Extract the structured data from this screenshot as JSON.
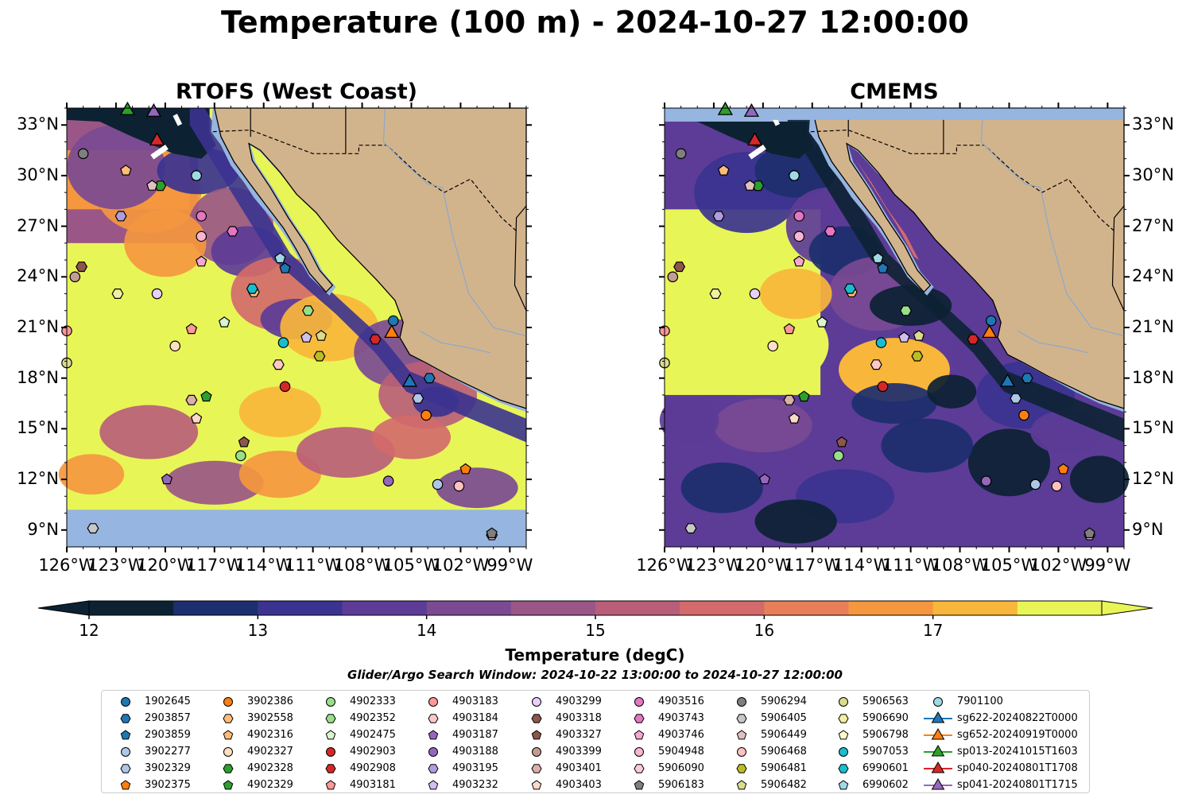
{
  "suptitle": "Temperature (100 m) - 2024-10-27 12:00:00",
  "panels": [
    {
      "title": "RTOFS (West Coast)",
      "style": "rtofs"
    },
    {
      "title": "CMEMS",
      "style": "cmems"
    }
  ],
  "axes": {
    "lon_ticks": [
      "126°W",
      "123°W",
      "120°W",
      "117°W",
      "114°W",
      "111°W",
      "108°W",
      "105°W",
      "102°W",
      "99°W"
    ],
    "lat_ticks": [
      "33°N",
      "30°N",
      "27°N",
      "24°N",
      "21°N",
      "18°N",
      "15°N",
      "12°N",
      "9°N"
    ]
  },
  "colorbar": {
    "label": "Temperature (degC)",
    "ticks": [
      "12",
      "13",
      "14",
      "15",
      "16",
      "17"
    ],
    "colors": [
      "#0c2233",
      "#1c2f6e",
      "#3b3390",
      "#5c3c97",
      "#7a4a93",
      "#9a5686",
      "#b95e78",
      "#d36a6b",
      "#e87f59",
      "#f4973f",
      "#f8b63b",
      "#e8f556"
    ]
  },
  "search_window": "Glider/Argo Search Window: 2024-10-22 13:00:00 to 2024-10-27 12:00:00",
  "colors": {
    "ocean_fill": "#96b5e0",
    "land": "#d2b48c",
    "cool_ocean": "#0c2233",
    "warm_ocean": "#e8f556"
  },
  "chart_data": {
    "type": "map",
    "lon_range": [
      -126,
      -98
    ],
    "lat_range": [
      8,
      34
    ],
    "markers": [
      {
        "id": "1902645",
        "shape": "circle",
        "color": "#1f77b4",
        "lon": -106.1,
        "lat": 21.4
      },
      {
        "id": "2903857",
        "shape": "hexagon",
        "color": "#1f77b4",
        "lon": -103.9,
        "lat": 18.0
      },
      {
        "id": "2903859",
        "shape": "pentagon",
        "color": "#1f77b4",
        "lon": -112.7,
        "lat": 24.5
      },
      {
        "id": "3902277",
        "shape": "circle",
        "color": "#aec7e8",
        "lon": -103.4,
        "lat": 11.7
      },
      {
        "id": "3902329",
        "shape": "hexagon",
        "color": "#aec7e8",
        "lon": -104.6,
        "lat": 16.8
      },
      {
        "id": "3902375",
        "shape": "pentagon",
        "color": "#ff7f0e",
        "lon": -101.7,
        "lat": 12.6
      },
      {
        "id": "3902386",
        "shape": "circle",
        "color": "#ff7f0e",
        "lon": -104.1,
        "lat": 15.8
      },
      {
        "id": "3902558",
        "shape": "hexagon",
        "color": "#ffbb78",
        "lon": -114.6,
        "lat": 23.1
      },
      {
        "id": "4902316",
        "shape": "pentagon",
        "color": "#ffbb78",
        "lon": -122.4,
        "lat": 30.3
      },
      {
        "id": "4902327",
        "shape": "circle",
        "color": "#ffe0c0",
        "lon": -119.4,
        "lat": 19.9
      },
      {
        "id": "4902328",
        "shape": "hexagon",
        "color": "#2ca02c",
        "lon": -120.3,
        "lat": 29.4
      },
      {
        "id": "4902329",
        "shape": "pentagon",
        "color": "#2ca02c",
        "lon": -117.5,
        "lat": 16.9
      },
      {
        "id": "4902333",
        "shape": "circle",
        "color": "#98df8a",
        "lon": -115.4,
        "lat": 13.4
      },
      {
        "id": "4902352",
        "shape": "hexagon",
        "color": "#98df8a",
        "lon": -111.3,
        "lat": 22.0
      },
      {
        "id": "4902475",
        "shape": "pentagon",
        "color": "#d8f5d0",
        "lon": -116.4,
        "lat": 21.3
      },
      {
        "id": "4902903",
        "shape": "circle",
        "color": "#d62728",
        "lon": -112.7,
        "lat": 17.5
      },
      {
        "id": "4902908",
        "shape": "hexagon",
        "color": "#d62728",
        "lon": -107.2,
        "lat": 20.3
      },
      {
        "id": "4903181",
        "shape": "pentagon",
        "color": "#ff9896",
        "lon": -118.4,
        "lat": 20.9
      },
      {
        "id": "4903183",
        "shape": "circle",
        "color": "#ff9896",
        "lon": -126.0,
        "lat": 20.8
      },
      {
        "id": "4903184",
        "shape": "hexagon",
        "color": "#ffc8c8",
        "lon": -113.1,
        "lat": 18.8
      },
      {
        "id": "4903187",
        "shape": "pentagon",
        "color": "#9467bd",
        "lon": -119.9,
        "lat": 12.0
      },
      {
        "id": "4903188",
        "shape": "circle",
        "color": "#9467bd",
        "lon": -106.4,
        "lat": 11.9
      },
      {
        "id": "4903195",
        "shape": "hexagon",
        "color": "#b09ce0",
        "lon": -122.7,
        "lat": 27.6
      },
      {
        "id": "4903232",
        "shape": "pentagon",
        "color": "#d0c0f0",
        "lon": -111.4,
        "lat": 20.4
      },
      {
        "id": "4903299",
        "shape": "circle",
        "color": "#e8d0f8",
        "lon": -120.5,
        "lat": 23.0
      },
      {
        "id": "4903318",
        "shape": "hexagon",
        "color": "#8c564b",
        "lon": -125.1,
        "lat": 24.6
      },
      {
        "id": "4903327",
        "shape": "pentagon",
        "color": "#8c564b",
        "lon": -115.2,
        "lat": 14.2
      },
      {
        "id": "4903399",
        "shape": "circle",
        "color": "#c49c94",
        "lon": -125.5,
        "lat": 24.0
      },
      {
        "id": "4903401",
        "shape": "hexagon",
        "color": "#dbb0a8",
        "lon": -118.4,
        "lat": 16.7
      },
      {
        "id": "4903403",
        "shape": "pentagon",
        "color": "#ffd8c8",
        "lon": -118.1,
        "lat": 15.6
      },
      {
        "id": "4903516",
        "shape": "circle",
        "color": "#e377c2",
        "lon": -117.8,
        "lat": 27.6
      },
      {
        "id": "4903743",
        "shape": "hexagon",
        "color": "#e377c2",
        "lon": -115.9,
        "lat": 26.7
      },
      {
        "id": "4903746",
        "shape": "pentagon",
        "color": "#f7a6d2",
        "lon": -117.8,
        "lat": 24.9
      },
      {
        "id": "5904948",
        "shape": "circle",
        "color": "#f7b6d2",
        "lon": -117.8,
        "lat": 26.4
      },
      {
        "id": "5906090",
        "shape": "hexagon",
        "color": "#fcc8e0",
        "lon": -100.1,
        "lat": 8.7
      },
      {
        "id": "5906183",
        "shape": "pentagon",
        "color": "#7f7f7f",
        "lon": -100.1,
        "lat": 8.8
      },
      {
        "id": "5906294",
        "shape": "circle",
        "color": "#7f7f7f",
        "lon": -125.0,
        "lat": 31.3
      },
      {
        "id": "5906405",
        "shape": "hexagon",
        "color": "#c7c7c7",
        "lon": -124.4,
        "lat": 9.1
      },
      {
        "id": "5906449",
        "shape": "pentagon",
        "color": "#e0c0c0",
        "lon": -120.8,
        "lat": 29.4
      },
      {
        "id": "5906468",
        "shape": "circle",
        "color": "#ffc0c0",
        "lon": -102.1,
        "lat": 11.6
      },
      {
        "id": "5906481",
        "shape": "hexagon",
        "color": "#bcbd22",
        "lon": -110.6,
        "lat": 19.3
      },
      {
        "id": "5906482",
        "shape": "pentagon",
        "color": "#dbdb8d",
        "lon": -110.5,
        "lat": 20.5
      },
      {
        "id": "5906563",
        "shape": "circle",
        "color": "#dbdb8d",
        "lon": -126.0,
        "lat": 18.9
      },
      {
        "id": "5906690",
        "shape": "hexagon",
        "color": "#f0f0a0",
        "lon": -122.9,
        "lat": 23.0
      },
      {
        "id": "5906798",
        "shape": "pentagon",
        "color": "#ffffd0",
        "lon": -118.1,
        "lat": 30.0
      },
      {
        "id": "5907053",
        "shape": "circle",
        "color": "#17becf",
        "lon": -112.8,
        "lat": 20.1
      },
      {
        "id": "6990601",
        "shape": "hexagon",
        "color": "#17becf",
        "lon": -114.7,
        "lat": 23.3
      },
      {
        "id": "6990602",
        "shape": "pentagon",
        "color": "#9edae5",
        "lon": -113.0,
        "lat": 25.1
      },
      {
        "id": "7901100",
        "shape": "circle",
        "color": "#9edae5",
        "lon": -118.1,
        "lat": 30.0
      }
    ],
    "gliders": [
      {
        "id": "sg622-20240822T0000",
        "color": "#1f77b4",
        "lon": -105.1,
        "lat": 17.8
      },
      {
        "id": "sg652-20240919T0000",
        "color": "#ff7f0e",
        "lon": -106.2,
        "lat": 20.7
      },
      {
        "id": "sp013-20241015T1603",
        "color": "#2ca02c",
        "lon": -122.3,
        "lat": 33.9
      },
      {
        "id": "sp040-20240801T1708",
        "color": "#d62728",
        "lon": -120.5,
        "lat": 32.1
      },
      {
        "id": "sp041-20240801T1715",
        "color": "#9467bd",
        "lon": -120.7,
        "lat": 33.8
      }
    ]
  }
}
